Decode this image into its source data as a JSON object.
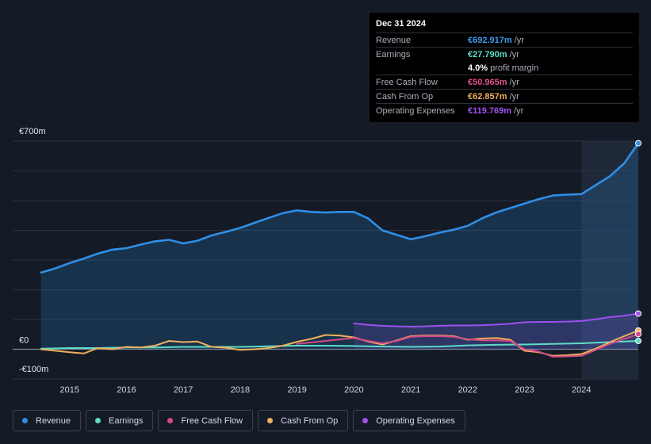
{
  "chart_data": {
    "type": "area",
    "title": "",
    "xlabel": "",
    "ylabel": "",
    "ylim": [
      -100,
      700
    ],
    "y_tick_labels": [
      {
        "value": 700,
        "label": "€700m"
      },
      {
        "value": 0,
        "label": "€0"
      },
      {
        "value": -100,
        "label": "-€100m"
      }
    ],
    "x_ticks": [
      {
        "value": 2015,
        "label": "2015"
      },
      {
        "value": 2016,
        "label": "2016"
      },
      {
        "value": 2017,
        "label": "2017"
      },
      {
        "value": 2018,
        "label": "2018"
      },
      {
        "value": 2019,
        "label": "2019"
      },
      {
        "value": 2020,
        "label": "2020"
      },
      {
        "value": 2021,
        "label": "2021"
      },
      {
        "value": 2022,
        "label": "2022"
      },
      {
        "value": 2023,
        "label": "2023"
      },
      {
        "value": 2024,
        "label": "2024"
      }
    ],
    "xlim": [
      2014.0,
      2025.0
    ],
    "highlight_from": 2024.0,
    "series": [
      {
        "name": "Revenue",
        "color": "#2f8fe6",
        "fill": true,
        "x": [
          2014.5,
          2014.75,
          2015.0,
          2015.25,
          2015.5,
          2015.75,
          2016.0,
          2016.25,
          2016.5,
          2016.75,
          2017.0,
          2017.25,
          2017.5,
          2017.75,
          2018.0,
          2018.25,
          2018.5,
          2018.75,
          2019.0,
          2019.25,
          2019.5,
          2019.75,
          2020.0,
          2020.25,
          2020.5,
          2020.75,
          2021.0,
          2021.25,
          2021.5,
          2021.75,
          2022.0,
          2022.25,
          2022.5,
          2022.75,
          2023.0,
          2023.25,
          2023.5,
          2023.75,
          2024.0,
          2024.25,
          2024.5,
          2024.75,
          2025.0
        ],
        "values": [
          258,
          272,
          290,
          305,
          322,
          335,
          340,
          352,
          363,
          368,
          356,
          365,
          383,
          395,
          408,
          425,
          442,
          458,
          467,
          462,
          460,
          462,
          462,
          440,
          400,
          385,
          370,
          380,
          392,
          402,
          415,
          440,
          460,
          475,
          490,
          505,
          517,
          520,
          522,
          552,
          582,
          625,
          693
        ]
      },
      {
        "name": "Earnings",
        "color": "#5fdcc8",
        "fill": false,
        "x": [
          2014.5,
          2015.0,
          2015.5,
          2016.0,
          2016.5,
          2017.0,
          2017.5,
          2018.0,
          2018.5,
          2019.0,
          2019.5,
          2020.0,
          2020.5,
          2021.0,
          2021.5,
          2022.0,
          2022.5,
          2023.0,
          2023.5,
          2024.0,
          2024.5,
          2025.0
        ],
        "values": [
          2,
          4,
          4,
          6,
          6,
          8,
          8,
          8,
          10,
          12,
          12,
          11,
          9,
          8,
          9,
          13,
          15,
          16,
          18,
          20,
          24,
          28
        ]
      },
      {
        "name": "Free Cash Flow",
        "color": "#d44a87",
        "fill": false,
        "x": [
          2019.0,
          2019.5,
          2020.0,
          2020.25,
          2020.5,
          2020.75,
          2021.0,
          2021.25,
          2021.5,
          2021.75,
          2022.0,
          2022.25,
          2022.5,
          2022.75,
          2023.0,
          2023.25,
          2023.5,
          2023.75,
          2024.0,
          2024.25,
          2024.5,
          2024.75,
          2025.0
        ],
        "values": [
          18,
          28,
          38,
          28,
          20,
          28,
          42,
          44,
          44,
          42,
          34,
          30,
          30,
          28,
          0,
          -8,
          -25,
          -24,
          -22,
          -2,
          18,
          35,
          51
        ]
      },
      {
        "name": "Cash From Op",
        "color": "#f0b05c",
        "fill": false,
        "x": [
          2014.5,
          2014.75,
          2015.0,
          2015.25,
          2015.5,
          2015.75,
          2016.0,
          2016.25,
          2016.5,
          2016.75,
          2017.0,
          2017.25,
          2017.5,
          2017.75,
          2018.0,
          2018.25,
          2018.5,
          2018.75,
          2019.0,
          2019.25,
          2019.5,
          2019.75,
          2020.0,
          2020.25,
          2020.5,
          2020.75,
          2021.0,
          2021.25,
          2021.5,
          2021.75,
          2022.0,
          2022.25,
          2022.5,
          2022.75,
          2023.0,
          2023.25,
          2023.5,
          2023.75,
          2024.0,
          2024.25,
          2024.5,
          2024.75,
          2025.0
        ],
        "values": [
          0,
          -5,
          -10,
          -14,
          4,
          0,
          8,
          6,
          12,
          28,
          24,
          26,
          8,
          5,
          -2,
          0,
          4,
          12,
          25,
          35,
          48,
          46,
          40,
          26,
          16,
          30,
          44,
          46,
          46,
          44,
          32,
          36,
          38,
          32,
          -5,
          -10,
          -22,
          -20,
          -16,
          2,
          24,
          44,
          63
        ]
      },
      {
        "name": "Operating Expenses",
        "color": "#9f4ff0",
        "fill": true,
        "x": [
          2020.0,
          2020.25,
          2020.5,
          2020.75,
          2021.0,
          2021.25,
          2021.5,
          2021.75,
          2022.0,
          2022.25,
          2022.5,
          2022.75,
          2023.0,
          2023.25,
          2023.5,
          2023.75,
          2024.0,
          2024.25,
          2024.5,
          2024.75,
          2025.0
        ],
        "values": [
          87,
          82,
          79,
          77,
          76,
          77,
          79,
          80,
          80,
          81,
          83,
          86,
          91,
          92,
          92,
          93,
          95,
          101,
          108,
          113,
          120
        ]
      }
    ]
  },
  "tooltip": {
    "date": "Dec 31 2024",
    "rows": [
      {
        "label": "Revenue",
        "value": "€692.917m",
        "suffix": "/yr",
        "color": "#3b9cf0"
      },
      {
        "label": "Earnings",
        "value": "€27.790m",
        "suffix": "/yr",
        "color": "#5fdcc8"
      },
      {
        "label": "",
        "value": "4.0%",
        "suffix": "profit margin",
        "color": "#ffffff"
      },
      {
        "label": "Free Cash Flow",
        "value": "€50.965m",
        "suffix": "/yr",
        "color": "#e0528f"
      },
      {
        "label": "Cash From Op",
        "value": "€62.857m",
        "suffix": "/yr",
        "color": "#f0b05c"
      },
      {
        "label": "Operating Expenses",
        "value": "€119.769m",
        "suffix": "/yr",
        "color": "#a355f2"
      }
    ]
  },
  "legend": [
    {
      "label": "Revenue",
      "color": "#2f8fe6"
    },
    {
      "label": "Earnings",
      "color": "#5fdcc8"
    },
    {
      "label": "Free Cash Flow",
      "color": "#d44a87"
    },
    {
      "label": "Cash From Op",
      "color": "#f0b05c"
    },
    {
      "label": "Operating Expenses",
      "color": "#9f4ff0"
    }
  ]
}
